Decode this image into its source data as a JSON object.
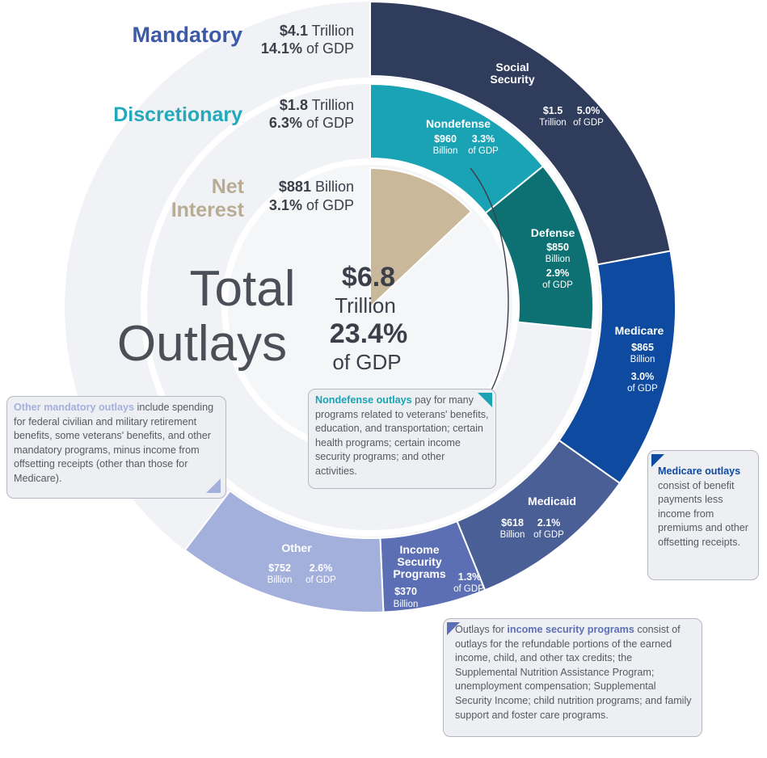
{
  "colors": {
    "mandatory": "#2f3c5c",
    "social_security": "#2f3c5c",
    "medicare": "#0d4aa0",
    "medicaid": "#4b5f97",
    "income_security": "#5c6fb5",
    "other": "#a4b0dc",
    "nondefense": "#1aa3b4",
    "defense": "#0d7173",
    "net_interest": "#c9b89a",
    "mandatory_title": "#3c5aa8",
    "discretionary_title": "#22a9bb",
    "net_interest_title": "#b8ac95"
  },
  "header": {
    "mandatory": {
      "title": "Mandatory",
      "amount": "$4.1",
      "amount_unit": "Trillion",
      "pct": "14.1%",
      "pct_unit": "of GDP"
    },
    "discretionary": {
      "title": "Discretionary",
      "amount": "$1.8",
      "amount_unit": "Trillion",
      "pct": "6.3%",
      "pct_unit": "of GDP"
    },
    "net_interest": {
      "title_line1": "Net",
      "title_line2": "Interest",
      "amount": "$881",
      "amount_unit": "Billion",
      "pct": "3.1%",
      "pct_unit": "of GDP"
    }
  },
  "center": {
    "title_line1": "Total",
    "title_line2": "Outlays",
    "amount": "$6.8",
    "amount_unit": "Trillion",
    "pct": "23.4%",
    "pct_unit": "of GDP"
  },
  "chart_data": {
    "type": "pie",
    "title": "Total Outlays",
    "total": {
      "value_trillions": 6.8,
      "pct_gdp": 23.4
    },
    "series": [
      {
        "name": "Mandatory",
        "ring": "outer",
        "value_billions": 4100,
        "pct_gdp": 14.1,
        "slices": [
          {
            "key": "social_security",
            "label": [
              "Social",
              "Security"
            ],
            "value_billions": 1500,
            "pct_gdp": 5.0,
            "amount": "$1.5",
            "amount_unit": "Trillion",
            "pct": "5.0%",
            "pct_unit": "of GDP"
          },
          {
            "key": "medicare",
            "label": [
              "Medicare"
            ],
            "value_billions": 865,
            "pct_gdp": 3.0,
            "amount": "$865",
            "amount_unit": "Billion",
            "pct": "3.0%",
            "pct_unit": "of GDP"
          },
          {
            "key": "medicaid",
            "label": [
              "Medicaid"
            ],
            "value_billions": 618,
            "pct_gdp": 2.1,
            "amount": "$618",
            "amount_unit": "Billion",
            "pct": "2.1%",
            "pct_unit": "of GDP"
          },
          {
            "key": "income_security",
            "label": [
              "Income",
              "Security",
              "Programs"
            ],
            "value_billions": 370,
            "pct_gdp": 1.3,
            "amount": "$370",
            "amount_unit": "Billion",
            "pct": "1.3%",
            "pct_unit": "of GDP"
          },
          {
            "key": "other",
            "label": [
              "Other"
            ],
            "value_billions": 752,
            "pct_gdp": 2.6,
            "amount": "$752",
            "amount_unit": "Billion",
            "pct": "2.6%",
            "pct_unit": "of GDP"
          }
        ]
      },
      {
        "name": "Discretionary",
        "ring": "middle",
        "value_billions": 1800,
        "pct_gdp": 6.3,
        "slices": [
          {
            "key": "nondefense",
            "label": [
              "Nondefense"
            ],
            "value_billions": 960,
            "pct_gdp": 3.3,
            "amount": "$960",
            "amount_unit": "Billion",
            "pct": "3.3%",
            "pct_unit": "of GDP"
          },
          {
            "key": "defense",
            "label": [
              "Defense"
            ],
            "value_billions": 850,
            "pct_gdp": 2.9,
            "amount": "$850",
            "amount_unit": "Billion",
            "pct": "2.9%",
            "pct_unit": "of GDP"
          }
        ]
      },
      {
        "name": "Net Interest",
        "ring": "inner",
        "value_billions": 881,
        "pct_gdp": 3.1,
        "slices": [
          {
            "key": "net_interest",
            "label": [
              "Net Interest"
            ],
            "value_billions": 881,
            "pct_gdp": 3.1
          }
        ]
      }
    ]
  },
  "notes": {
    "other_mandatory": {
      "highlight": "Other mandatory outlays",
      "text": " include spending for federal civilian and military retirement benefits, some veterans' benefits, and other mandatory programs, minus income from offsetting receipts (other than those for Medicare)."
    },
    "nondefense": {
      "highlight": "Nondefense outlays",
      "text": " pay for many programs related to veterans' benefits, education, and transportation; certain health programs; certain income security programs; and other activities."
    },
    "medicare": {
      "highlight": "Medicare outlays",
      "text": " consist of benefit payments less income from premiums and other offsetting receipts."
    },
    "income_security": {
      "prefix": "Outlays for ",
      "highlight": "income security programs",
      "text": " consist of outlays for the refundable portions of the earned income, child, and other tax credits; the Supplemental Nutrition Assistance Program; unemployment compensation; Supplemental Security Income; child nutrition programs; and family support and foster care programs."
    }
  }
}
